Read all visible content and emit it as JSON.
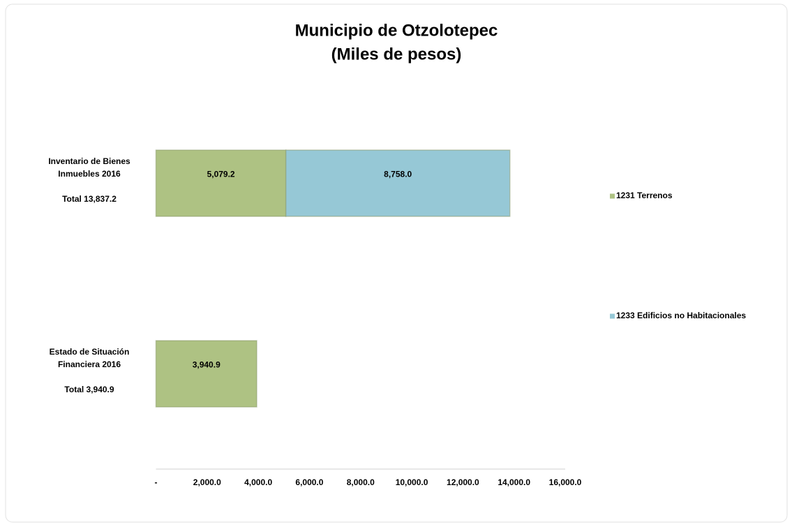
{
  "chart_data": {
    "type": "stacked-bar-horizontal",
    "title": [
      "Municipio de Otzolotepec",
      "(Miles de pesos)"
    ],
    "categories": [
      [
        "Inventario de Bienes",
        "Inmuebles 2016",
        "Total 13,837.2"
      ],
      [
        "Estado de Situación",
        "Financiera 2016",
        "Total  3,940.9"
      ]
    ],
    "series": [
      {
        "name": "1231 Terrenos",
        "color": "#aec283",
        "values": [
          5079.2,
          3940.9
        ],
        "value_labels": [
          "5,079.2",
          "3,940.9"
        ]
      },
      {
        "name": "1233 Edificios no Habitacionales",
        "color": "#96c8d6",
        "values": [
          8758.0,
          null
        ],
        "value_labels": [
          "8,758.0",
          null
        ]
      }
    ],
    "xlim": [
      0,
      16000
    ],
    "xticks": [
      {
        "value": 0,
        "label": "-"
      },
      {
        "value": 2000,
        "label": "2,000.0"
      },
      {
        "value": 4000,
        "label": "4,000.0"
      },
      {
        "value": 6000,
        "label": "6,000.0"
      },
      {
        "value": 8000,
        "label": "8,000.0"
      },
      {
        "value": 10000,
        "label": "10,000.0"
      },
      {
        "value": 12000,
        "label": "12,000.0"
      },
      {
        "value": 14000,
        "label": "14,000.0"
      },
      {
        "value": 16000,
        "label": "16,000.0"
      }
    ],
    "legend": "right",
    "grid": false
  }
}
